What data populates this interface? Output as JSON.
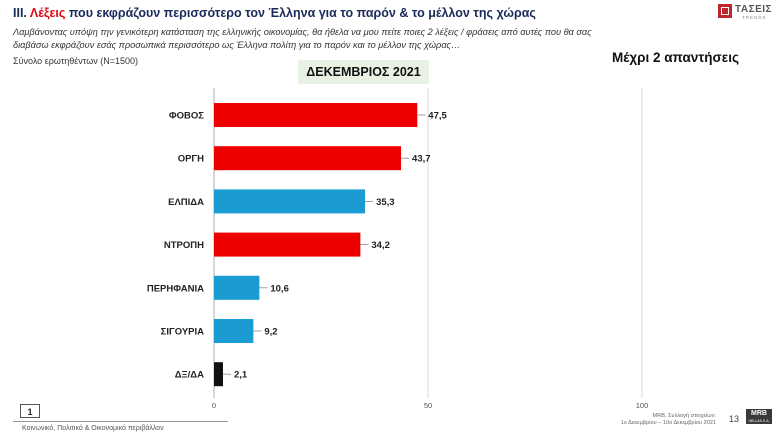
{
  "header": {
    "title_prefix": "ΙΙΙ. ",
    "title_highlight": "Λέξεις",
    "title_rest": " που εκφράζουν περισσότερο τον Έλληνα για το παρόν & το μέλλον της χώρας",
    "subtitle": "Λαμβάνοντας υπόψη την γενικότερη κατάσταση της ελληνικής οικονομίας, θα ήθελα να μου πείτε ποιες 2 λέξεις / φράσεις από αυτές που θα σας διαβάσω εκφράζουν εσάς προσωπικά περισσότερο ως Έλληνα πολίτη για το παρόν και το μέλλον της χώρας…",
    "sample": "Σύνολο ερωτηθέντων (N=1500)",
    "logo_name": "ΤΑΣΕΙΣ",
    "logo_sub": "TRENDS"
  },
  "period_label": "ΔΕΚΕΜΒΡΙΟΣ 2021",
  "answers_note": "Μέχρι 2 απαντήσεις",
  "chart_data": {
    "type": "bar",
    "orientation": "horizontal",
    "categories": [
      "ΦΟΒΟΣ",
      "ΟΡΓΗ",
      "ΕΛΠΙΔΑ",
      "ΝΤΡΟΠΗ",
      "ΠΕΡΗΦΑΝΙΑ",
      "ΣΙΓΟΥΡΙΑ",
      "ΔΞ/ΔΑ"
    ],
    "values": [
      47.5,
      43.7,
      35.3,
      34.2,
      10.6,
      9.2,
      2.1
    ],
    "value_labels": [
      "47,5",
      "43,7",
      "35,3",
      "34,2",
      "10,6",
      "9,2",
      "2,1"
    ],
    "bar_colors": [
      "#ee0000",
      "#ee0000",
      "#1a9bd1",
      "#ee0000",
      "#1a9bd1",
      "#1a9bd1",
      "#111111"
    ],
    "xlim": [
      0,
      100
    ],
    "xticks": [
      0,
      50,
      100
    ],
    "xtick_labels": [
      "0",
      "50",
      "100"
    ],
    "grid": true,
    "legend": "none"
  },
  "footer": {
    "page_box": "1",
    "section": "Κοινωνικό, Πολιτικό & Οικονομικό περιβάλλον",
    "source_line1": "MRB, Συλλογή στοιχείων:",
    "source_line2": "1ο Δεκεμβρίου – 10ο Δεκεμβρίου 2021",
    "page_number": "13",
    "mrb_logo": "MRB",
    "mrb_sub": "HELLAS S.A."
  }
}
